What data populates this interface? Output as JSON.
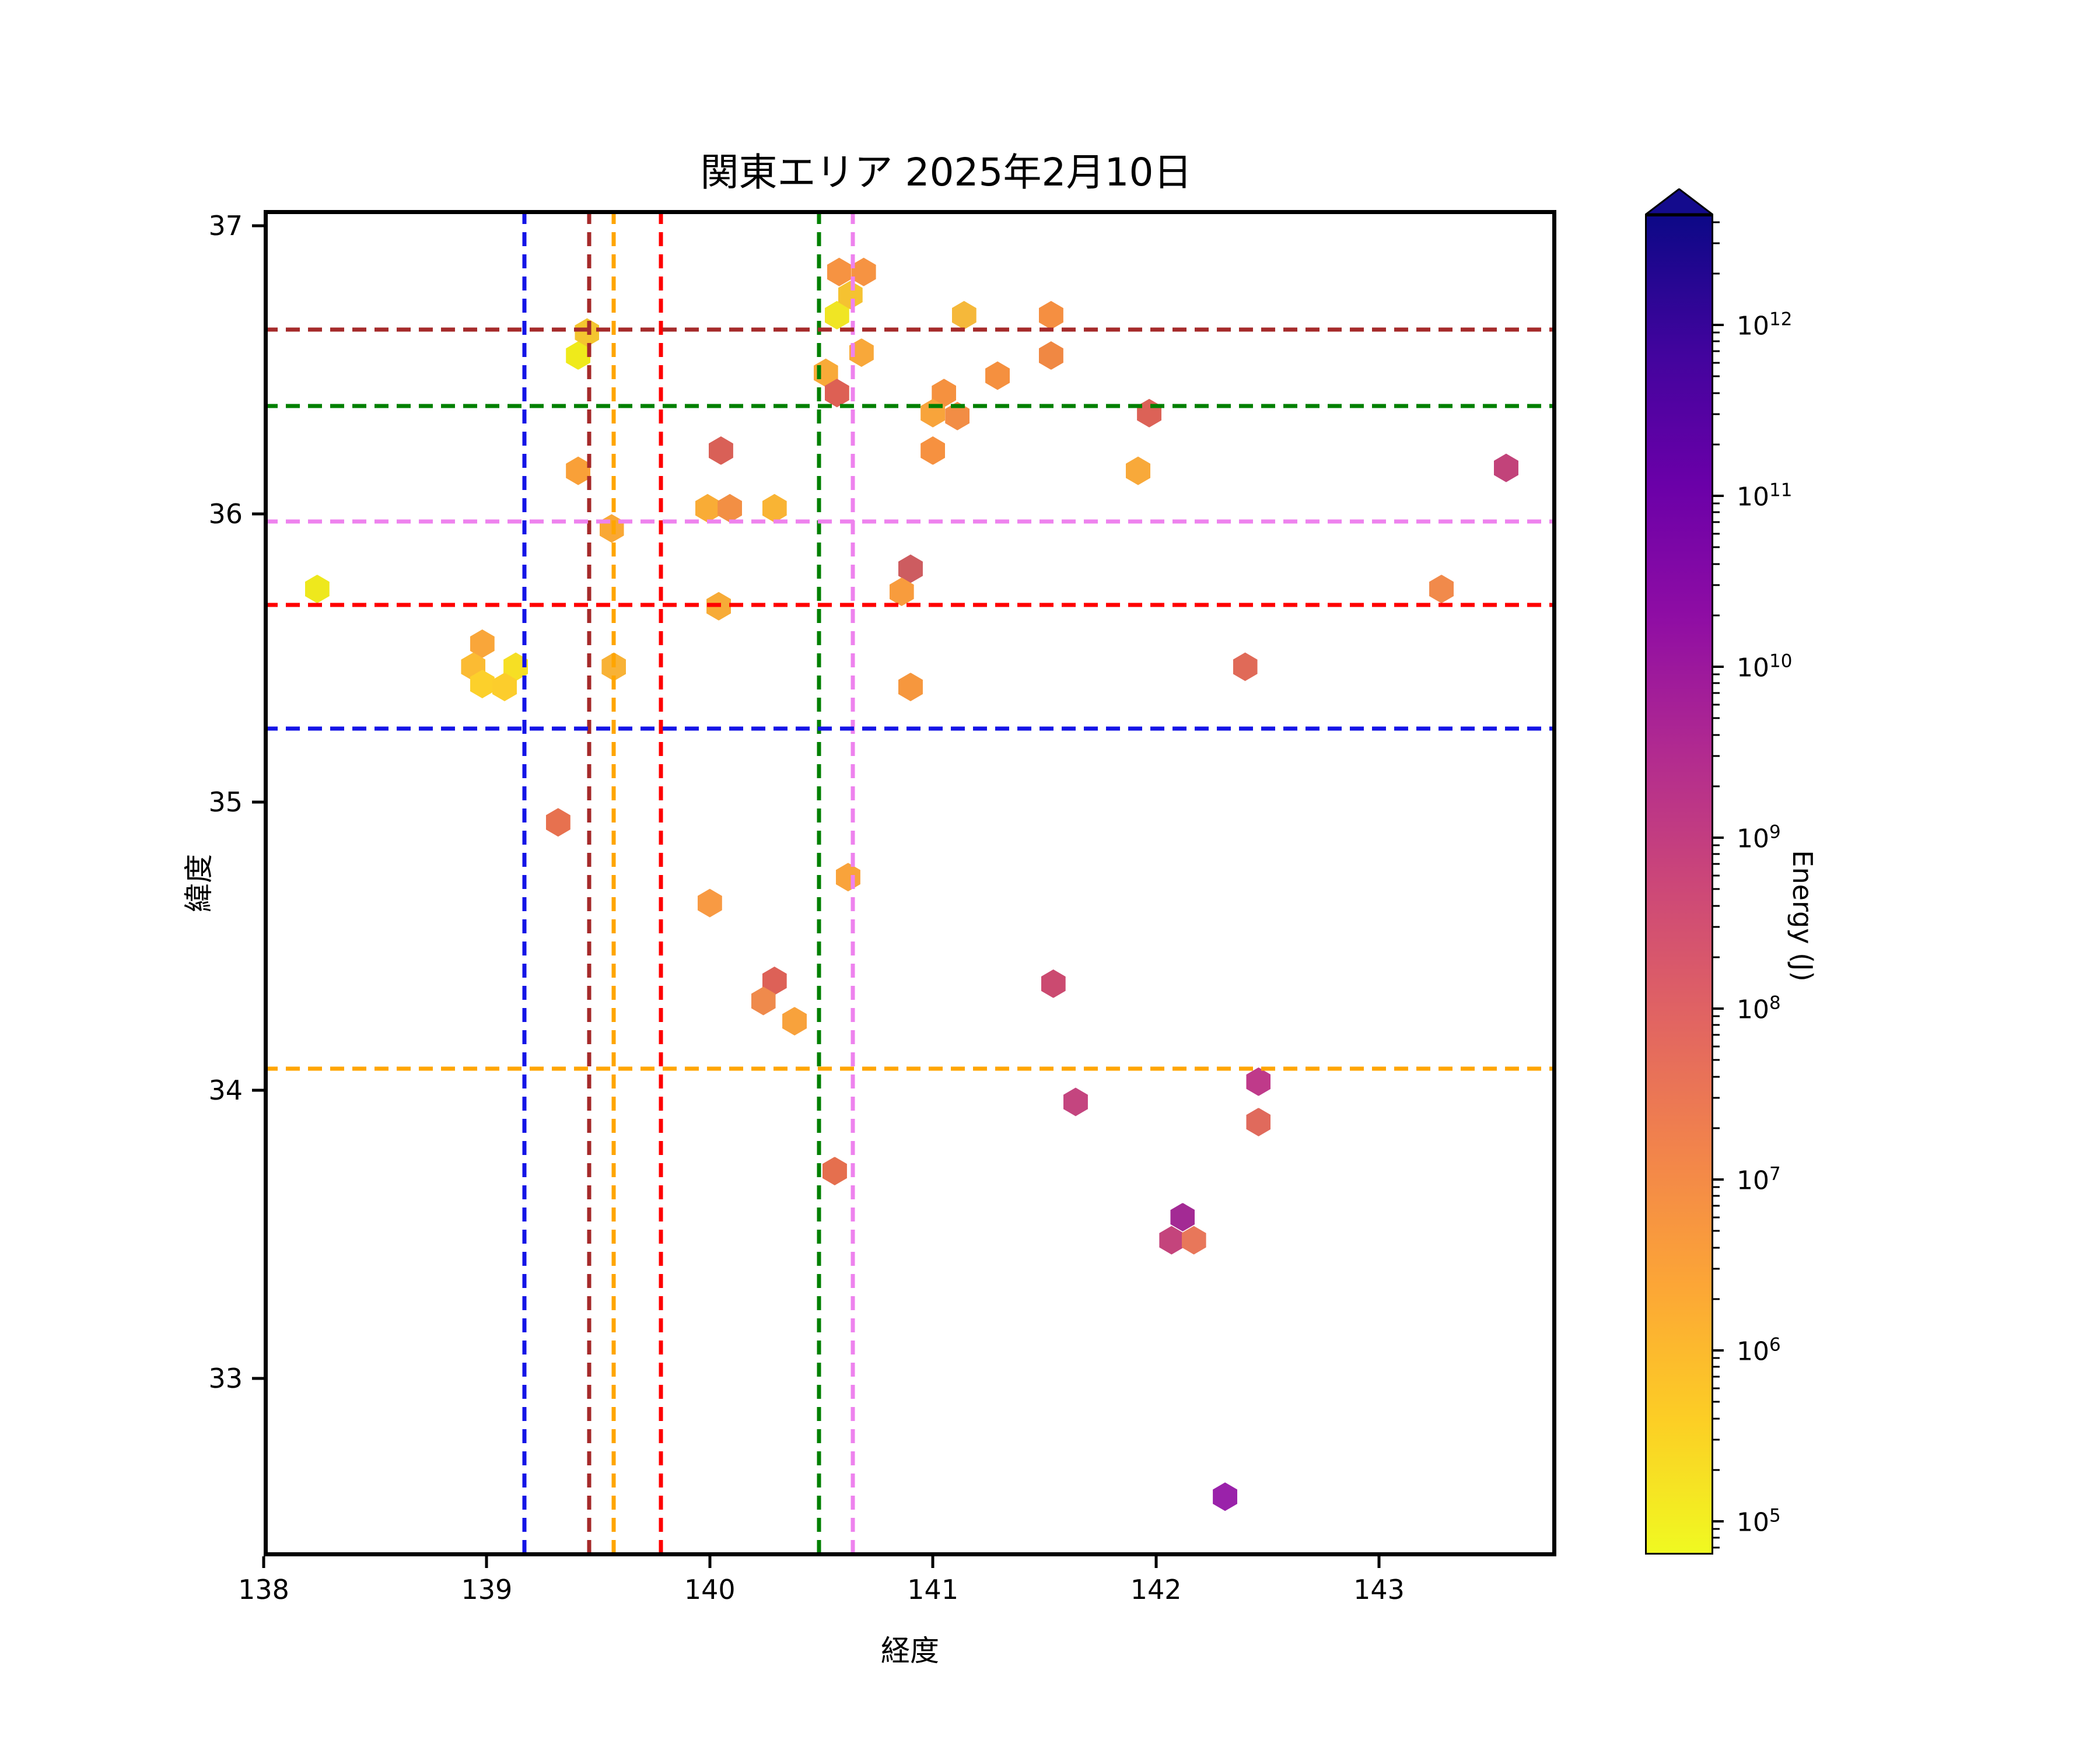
{
  "title": "関東エリア 2025年2月10日",
  "colorbar": {
    "label": "Energy (J)",
    "major_tick_exponents": [
      5,
      6,
      7,
      8,
      9,
      10,
      11,
      12
    ],
    "log_vmin": 4.8,
    "log_vmax": 12.65,
    "extend_max_color": "#140b8d",
    "gradient_top_to_bottom": [
      "#0d0887",
      "#41049d",
      "#6a00a8",
      "#8f0da4",
      "#b12a90",
      "#cc4778",
      "#e16462",
      "#f2844b",
      "#fca636",
      "#fcce25",
      "#f0f921"
    ]
  },
  "chart_data": {
    "type": "scatter",
    "marker": "hexagon",
    "title": "関東エリア 2025年2月10日",
    "xlabel": "経度",
    "ylabel": "緯度",
    "axes": {
      "xticks": [
        138,
        139,
        140,
        141,
        142,
        143
      ],
      "yticks": [
        37,
        36,
        35,
        34,
        33
      ],
      "xlim": [
        138,
        143.795
      ],
      "ylim": [
        32.383,
        37.055
      ],
      "grid": false,
      "color_scale": "log, plasma reversed, Energy (J) from 1e5 (yellow) to 1e12 (dark blue)"
    },
    "points_columns": [
      "longitude",
      "latitude",
      "color",
      "energy_j"
    ],
    "points": [
      [
        138.24,
        35.74,
        "#eee81d",
        120000.0
      ],
      [
        138.98,
        35.55,
        "#f9a63a",
        2500000.0
      ],
      [
        139.13,
        35.47,
        "#f6df24",
        300000.0
      ],
      [
        138.94,
        35.47,
        "#fbbb33",
        1200000.0
      ],
      [
        138.98,
        35.41,
        "#fcd02b",
        700000.0
      ],
      [
        139.08,
        35.4,
        "#fccd2c",
        700000.0
      ],
      [
        139.57,
        35.47,
        "#f8b236",
        1500000.0
      ],
      [
        139.32,
        34.93,
        "#e7714f",
        40000000.0
      ],
      [
        139.41,
        36.15,
        "#f9a038",
        3000000.0
      ],
      [
        139.41,
        36.55,
        "#efea1b",
        100000.0
      ],
      [
        139.45,
        36.63,
        "#f4c52f",
        700000.0
      ],
      [
        139.56,
        35.95,
        "#f9a835",
        2500000.0
      ],
      [
        139.99,
        36.02,
        "#f9ac36",
        2000000.0
      ],
      [
        140.09,
        36.02,
        "#f28f44",
        10000000.0
      ],
      [
        140.29,
        36.02,
        "#f9b434",
        1500000.0
      ],
      [
        140.04,
        35.68,
        "#f7ab37",
        2000000.0
      ],
      [
        140.05,
        36.22,
        "#d96057",
        150000000.0
      ],
      [
        140.57,
        36.69,
        "#f0e524",
        150000.0
      ],
      [
        140.63,
        36.76,
        "#f5c231",
        800000.0
      ],
      [
        140.58,
        36.84,
        "#f69342",
        10000000.0
      ],
      [
        140.69,
        36.84,
        "#f69342",
        10000000.0
      ],
      [
        140.52,
        36.49,
        "#f8aa38",
        2500000.0
      ],
      [
        140.57,
        36.42,
        "#dd6054",
        100000000.0
      ],
      [
        140.68,
        36.56,
        "#f8a83a",
        2500000.0
      ],
      [
        141.14,
        36.69,
        "#f5b83a",
        1500000.0
      ],
      [
        141.53,
        36.69,
        "#f58f41",
        10000000.0
      ],
      [
        141.53,
        36.55,
        "#f08843",
        15000000.0
      ],
      [
        141.29,
        36.48,
        "#f5903f",
        10000000.0
      ],
      [
        141.05,
        36.42,
        "#f5913f",
        10000000.0
      ],
      [
        141.0,
        36.35,
        "#f8a43b",
        2500000.0
      ],
      [
        141.11,
        36.34,
        "#f28d45",
        12000000.0
      ],
      [
        141.97,
        36.35,
        "#dc6257",
        100000000.0
      ],
      [
        141.0,
        36.22,
        "#f69140",
        7000000.0
      ],
      [
        141.92,
        36.15,
        "#f8a93a",
        2500000.0
      ],
      [
        143.57,
        36.16,
        "#c2437a",
        2000000000.0
      ],
      [
        140.9,
        35.81,
        "#cd5c60",
        200000000.0
      ],
      [
        140.86,
        35.73,
        "#f89c3d",
        4000000.0
      ],
      [
        143.28,
        35.74,
        "#f18a4b",
        12000000.0
      ],
      [
        142.4,
        35.47,
        "#e06a58",
        60000000.0
      ],
      [
        140.9,
        35.4,
        "#f6973e",
        5000000.0
      ],
      [
        140.62,
        34.74,
        "#f9a33b",
        3000000.0
      ],
      [
        140.0,
        34.65,
        "#f89a43",
        4000000.0
      ],
      [
        140.29,
        34.38,
        "#dd6157",
        100000000.0
      ],
      [
        140.24,
        34.31,
        "#ef8a4c",
        12000000.0
      ],
      [
        140.38,
        34.24,
        "#f8a23c",
        3000000.0
      ],
      [
        141.54,
        34.37,
        "#cb4a70",
        600000000.0
      ],
      [
        142.46,
        34.03,
        "#bf3a8a",
        3000000000.0
      ],
      [
        141.64,
        33.96,
        "#c4457f",
        2000000000.0
      ],
      [
        142.46,
        33.89,
        "#e06a5c",
        60000000.0
      ],
      [
        140.56,
        33.72,
        "#e56f4e",
        40000000.0
      ],
      [
        142.12,
        33.56,
        "#a32a94",
        10000000000.0
      ],
      [
        142.07,
        33.48,
        "#c4447c",
        2000000000.0
      ],
      [
        142.17,
        33.48,
        "#e8775a",
        40000000.0
      ],
      [
        142.31,
        32.59,
        "#9a22aa",
        20000000000.0
      ]
    ],
    "vlines": [
      {
        "lon": 139.17,
        "color": "#1414e6"
      },
      {
        "lon": 139.46,
        "color": "#a52a2a"
      },
      {
        "lon": 139.57,
        "color": "#ffa500"
      },
      {
        "lon": 139.78,
        "color": "#ff0000"
      },
      {
        "lon": 140.49,
        "color": "#008000"
      },
      {
        "lon": 140.64,
        "color": "#ee82ee"
      }
    ],
    "hlines": [
      {
        "lat": 36.64,
        "color": "#a52a2a"
      },
      {
        "lat": 36.375,
        "color": "#008000"
      },
      {
        "lat": 35.975,
        "color": "#ee82ee"
      },
      {
        "lat": 35.685,
        "color": "#ff0000"
      },
      {
        "lat": 35.255,
        "color": "#1414e6"
      },
      {
        "lat": 34.075,
        "color": "#ffa500"
      }
    ]
  }
}
